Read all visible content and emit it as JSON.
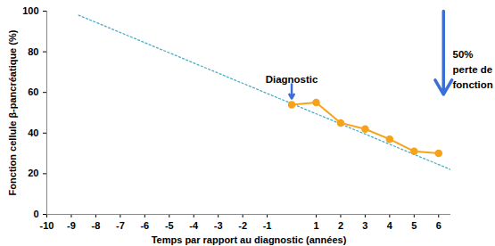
{
  "chart_data": {
    "type": "line",
    "x_label": "Temps par rapport au diagnostic (années)",
    "y_label": "Fonction cellule β-pancréatique (%)",
    "xlim": [
      -10,
      6.5
    ],
    "xticks": [
      -10,
      -9,
      -8,
      -7,
      -6,
      -5,
      -4,
      -3,
      -2,
      -1,
      1,
      2,
      3,
      4,
      5,
      6
    ],
    "ylim": [
      0,
      100
    ],
    "yticks": [
      0,
      20,
      40,
      60,
      80,
      100
    ],
    "grid": false,
    "series": [
      {
        "x": [
          -8.7,
          6.5
        ],
        "values": [
          98,
          22
        ],
        "color": "#4bacc6",
        "line_style": "dotted",
        "marker": "none"
      },
      {
        "x": [
          0,
          1,
          2,
          3,
          4,
          5,
          6
        ],
        "values": [
          54,
          55,
          45,
          42,
          37,
          31,
          30
        ],
        "color": "#f7a21b",
        "line_style": "solid",
        "marker": "circle"
      }
    ],
    "annotations": [
      {
        "text": "Diagnostic",
        "x": 0,
        "y": 67,
        "color": "#000000",
        "arrow": {
          "x": 0,
          "y1": 64,
          "y2": 57,
          "color": "#3b6fd4"
        }
      },
      {
        "text": "50%\nperte de\nfonction",
        "x": 6.5,
        "y": 72,
        "color": "#000000",
        "arrow": {
          "x": 6.2,
          "y1": 100,
          "y2": 59,
          "color": "#3b6fd4"
        }
      }
    ]
  }
}
